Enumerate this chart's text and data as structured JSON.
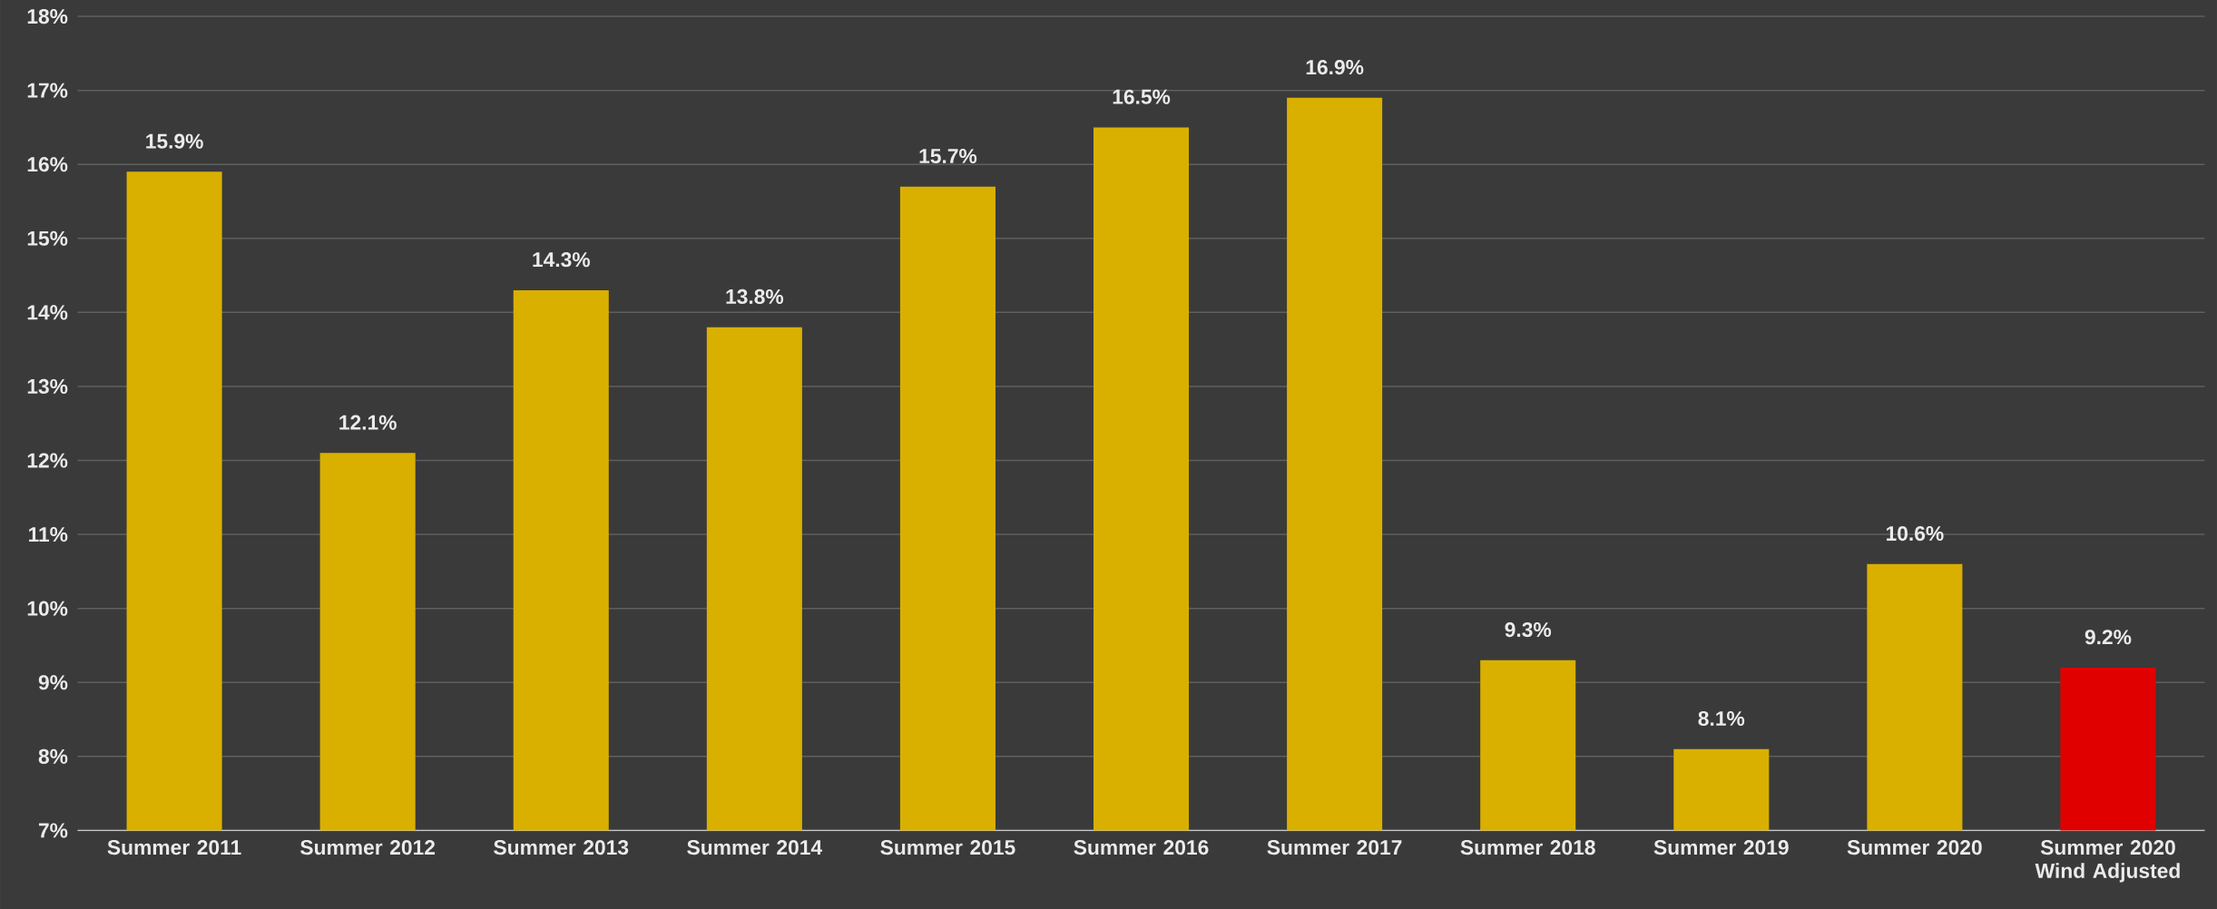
{
  "chart_data": {
    "type": "bar",
    "categories": [
      "Summer 2011",
      "Summer 2012",
      "Summer 2013",
      "Summer 2014",
      "Summer 2015",
      "Summer 2016",
      "Summer 2017",
      "Summer 2018",
      "Summer 2019",
      "Summer 2020",
      "Summer 2020 Wind Adjusted"
    ],
    "values": [
      15.9,
      12.1,
      14.3,
      13.8,
      15.7,
      16.5,
      16.9,
      9.3,
      8.1,
      10.6,
      9.2
    ],
    "colors": [
      "#d9b000",
      "#d9b000",
      "#d9b000",
      "#d9b000",
      "#d9b000",
      "#d9b000",
      "#d9b000",
      "#d9b000",
      "#d9b000",
      "#d9b000",
      "#e00000"
    ],
    "value_labels": [
      "15.9%",
      "12.1%",
      "14.3%",
      "13.8%",
      "15.7%",
      "16.5%",
      "16.9%",
      "9.3%",
      "8.1%",
      "10.6%",
      "9.2%"
    ],
    "ylim": [
      7,
      18
    ],
    "yticks": [
      {
        "value": 7,
        "label": "7%"
      },
      {
        "value": 8,
        "label": "8%"
      },
      {
        "value": 9,
        "label": "9%"
      },
      {
        "value": 10,
        "label": "10%"
      },
      {
        "value": 11,
        "label": "11%"
      },
      {
        "value": 12,
        "label": "12%"
      },
      {
        "value": 13,
        "label": "13%"
      },
      {
        "value": 14,
        "label": "14%"
      },
      {
        "value": 15,
        "label": "15%"
      },
      {
        "value": 16,
        "label": "16%"
      },
      {
        "value": 17,
        "label": "17%"
      },
      {
        "value": 18,
        "label": "18%"
      }
    ],
    "grid": "y"
  }
}
